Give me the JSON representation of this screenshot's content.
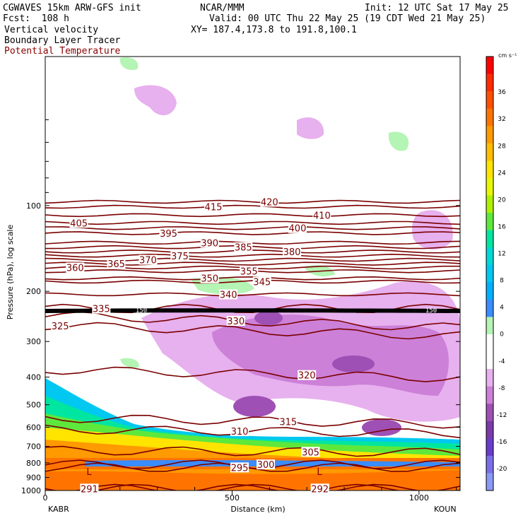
{
  "header": {
    "model": "CGWAVES 15km ARW-GFS init",
    "forecast": "Fcst:  108 h",
    "center": "NCAR/MMM",
    "init": "Init: 12 UTC Sat 17 May 25",
    "valid": "Valid: 00 UTC Thu 22 May 25 (19 CDT Wed 21 May 25)",
    "xy": "XY= 187.4,173.8 to 191.8,100.1",
    "field1": "Vertical velocity",
    "field2": "Boundary Layer Tracer",
    "field3": "Potential Temperature"
  },
  "colors": {
    "theta": "#7a0000",
    "field3_text": "#8b0000",
    "neg_light": "#e7b0ee",
    "neg_mid": "#cc80d8",
    "neg_dark": "#9f50b5",
    "pos_light": "#b4f4b4"
  },
  "chart_data": {
    "type": "heatmap",
    "title": "Vertical velocity",
    "xlabel": "Distance (km)",
    "ylabel": "Pressure (hPa), log scale",
    "x_ticks": [
      "0",
      "500",
      "1000"
    ],
    "x_endpoints": {
      "left": "KABR",
      "right": "KOUN"
    },
    "xlim": [
      0,
      1110
    ],
    "ylim": [
      1000,
      30
    ],
    "y_scale": "log",
    "y_ticks": [
      "100",
      "200",
      "300",
      "400",
      "500",
      "600",
      "700",
      "800",
      "900",
      "1000"
    ],
    "colorbar": {
      "units": "cm s⁻¹",
      "tick_labels": [
        "36",
        "32",
        "28",
        "24",
        "20",
        "16",
        "12",
        "8",
        "4",
        "0",
        "-4",
        "-8",
        "-12",
        "-16",
        "-20"
      ],
      "colors": [
        "#ff0000",
        "#ff2a00",
        "#ff4f00",
        "#ff7400",
        "#ff9a00",
        "#ffbe00",
        "#ffe400",
        "#e8f800",
        "#aef000",
        "#5ee83c",
        "#00e6a0",
        "#00d8d8",
        "#00c8f0",
        "#00b0ff",
        "#3a8cff",
        "#b4f4b4",
        "#ffffff",
        "#ffffff",
        "#e7b0ee",
        "#cc80d8",
        "#9f50b5",
        "#7a3aa8",
        "#6a3ccc",
        "#7a6ee8",
        "#8a9af4"
      ]
    },
    "theta_contours": [
      {
        "value": 291,
        "p": 985,
        "label_x_km": 118
      },
      {
        "value": 292,
        "p": 985,
        "label_x_km": 735
      },
      {
        "value": 295,
        "p": 830,
        "label_x_km": 520
      },
      {
        "value": 300,
        "p": 810,
        "label_x_km": 590
      },
      {
        "value": 305,
        "p": 730,
        "label_x_km": 710
      },
      {
        "value": 310,
        "p": 620,
        "label_x_km": 520
      },
      {
        "value": 315,
        "p": 570,
        "label_x_km": 650
      },
      {
        "value": 320,
        "p": 390,
        "label_x_km": 700
      },
      {
        "value": 325,
        "p": 275,
        "label_x_km": 40
      },
      {
        "value": 330,
        "p": 255,
        "label_x_km": 510
      },
      {
        "value": 335,
        "p": 230,
        "label_x_km": 150
      },
      {
        "value": 340,
        "p": 205,
        "label_x_km": 490
      },
      {
        "value": 345,
        "p": 185,
        "label_x_km": 580
      },
      {
        "value": 350,
        "p": 180,
        "label_x_km": 440
      },
      {
        "value": 355,
        "p": 170,
        "label_x_km": 545
      },
      {
        "value": 360,
        "p": 165,
        "label_x_km": 80
      },
      {
        "value": 365,
        "p": 160,
        "label_x_km": 190
      },
      {
        "value": 370,
        "p": 155,
        "label_x_km": 275
      },
      {
        "value": 375,
        "p": 150,
        "label_x_km": 360
      },
      {
        "value": 380,
        "p": 145,
        "label_x_km": 660
      },
      {
        "value": 385,
        "p": 140,
        "label_x_km": 530
      },
      {
        "value": 390,
        "p": 135,
        "label_x_km": 440
      },
      {
        "value": 395,
        "p": 125,
        "label_x_km": 330
      },
      {
        "value": 400,
        "p": 120,
        "label_x_km": 675
      },
      {
        "value": 405,
        "p": 115,
        "label_x_km": 90
      },
      {
        "value": 410,
        "p": 108,
        "label_x_km": 740
      },
      {
        "value": 415,
        "p": 101,
        "label_x_km": 450
      },
      {
        "value": 420,
        "p": 97,
        "label_x_km": 600
      }
    ],
    "bl_tracer_label": "150",
    "low_markers": [
      "L",
      "L"
    ]
  }
}
